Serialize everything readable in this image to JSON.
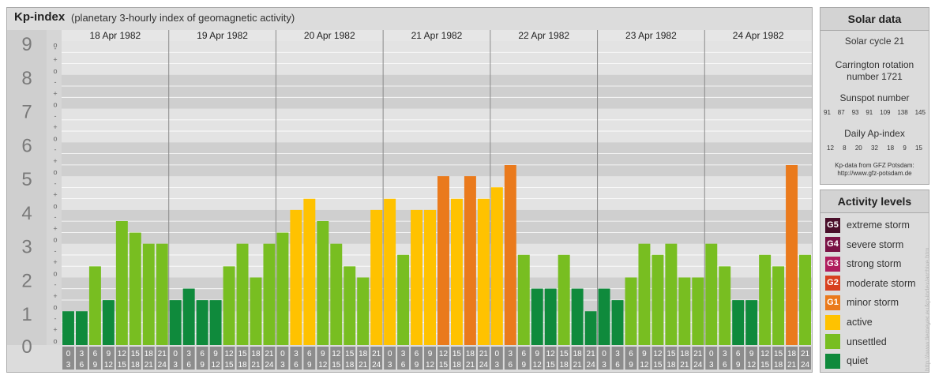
{
  "chart": {
    "title": "Kp-index",
    "subtitle": "(planetary 3-hourly index of geomagnetic activity)"
  },
  "chart_data": {
    "type": "bar",
    "title": "Kp-index",
    "subtitle": "(planetary 3-hourly index of geomagnetic activity)",
    "ylim": [
      0,
      9
    ],
    "y_ticks": [
      "0",
      "1",
      "2",
      "3",
      "4",
      "5",
      "6",
      "7",
      "8",
      "9"
    ],
    "minor_tick_labels": [
      "o",
      "+",
      "-"
    ],
    "days": [
      "18 Apr 1982",
      "19 Apr 1982",
      "20 Apr 1982",
      "21 Apr 1982",
      "22 Apr 1982",
      "23 Apr 1982",
      "24 Apr 1982"
    ],
    "interval_start": [
      "0",
      "3",
      "6",
      "9",
      "12",
      "15",
      "18",
      "21"
    ],
    "interval_end": [
      "3",
      "6",
      "9",
      "12",
      "15",
      "18",
      "21",
      "24"
    ],
    "values": [
      [
        1.0,
        1.0,
        2.33,
        1.33,
        3.67,
        3.33,
        3.0,
        3.0
      ],
      [
        1.33,
        1.67,
        1.33,
        1.33,
        2.33,
        3.0,
        2.0,
        3.0
      ],
      [
        3.33,
        4.0,
        4.33,
        3.67,
        3.0,
        2.33,
        2.0,
        4.0
      ],
      [
        4.33,
        2.67,
        4.0,
        4.0,
        5.0,
        4.33,
        5.0,
        4.33
      ],
      [
        4.67,
        5.33,
        2.67,
        1.67,
        1.67,
        2.67,
        1.67,
        1.0
      ],
      [
        1.67,
        1.33,
        2.0,
        3.0,
        2.67,
        3.0,
        2.0,
        2.0
      ],
      [
        3.0,
        2.33,
        1.33,
        1.33,
        2.67,
        2.33,
        5.33,
        2.67
      ]
    ],
    "level_colors": {
      "quiet": "#0f8a3c",
      "unsettled": "#78be21",
      "active": "#ffc200",
      "G1": "#ea7a1c"
    }
  },
  "solar": {
    "title": "Solar data",
    "cycle": "Solar cycle 21",
    "carrington_line1": "Carrington rotation",
    "carrington_line2": "number 1721",
    "sunspot_title": "Sunspot number",
    "sunspot_values": [
      "91",
      "87",
      "93",
      "91",
      "109",
      "138",
      "145"
    ],
    "ap_title": "Daily Ap-index",
    "ap_values": [
      "12",
      "8",
      "20",
      "32",
      "18",
      "9",
      "15"
    ],
    "credit_line1": "Kp-data from GFZ Potsdam:",
    "credit_line2": "http://www.gfz-potsdam.de"
  },
  "activity": {
    "title": "Activity levels",
    "levels": [
      {
        "badge": "G5",
        "label": "extreme storm",
        "color": "#4a0f2a"
      },
      {
        "badge": "G4",
        "label": "severe storm",
        "color": "#7a1245"
      },
      {
        "badge": "G3",
        "label": "strong storm",
        "color": "#b01d5e"
      },
      {
        "badge": "G2",
        "label": "moderate storm",
        "color": "#d8401f"
      },
      {
        "badge": "G1",
        "label": "minor storm",
        "color": "#ea7a1c"
      },
      {
        "badge": "",
        "label": "active",
        "color": "#ffc200"
      },
      {
        "badge": "",
        "label": "unsettled",
        "color": "#78be21"
      },
      {
        "badge": "",
        "label": "quiet",
        "color": "#0f8a3c"
      }
    ]
  },
  "watermark": "http://www.tiemeyer.eu/kp-index/archive.htm"
}
